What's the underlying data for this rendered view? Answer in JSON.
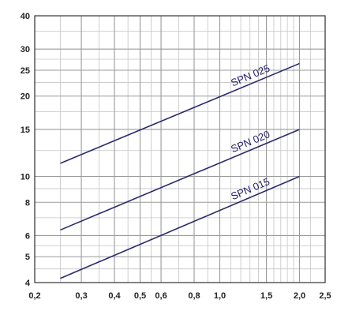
{
  "chart_data": {
    "type": "line",
    "title": "",
    "xlabel": "",
    "ylabel": "",
    "x_scale": "log",
    "y_scale": "log",
    "xlim": [
      0.2,
      2.5
    ],
    "ylim": [
      4,
      40
    ],
    "grid": true,
    "x_ticks": [
      {
        "value": 0.2,
        "label": "0,2"
      },
      {
        "value": 0.3,
        "label": "0,3"
      },
      {
        "value": 0.4,
        "label": "0,4"
      },
      {
        "value": 0.5,
        "label": "0,5"
      },
      {
        "value": 0.6,
        "label": "0,6"
      },
      {
        "value": 0.8,
        "label": "0,8"
      },
      {
        "value": 1.0,
        "label": "1,0"
      },
      {
        "value": 1.5,
        "label": "1,5"
      },
      {
        "value": 2.0,
        "label": "2,0"
      },
      {
        "value": 2.5,
        "label": "2,5"
      }
    ],
    "y_ticks": [
      {
        "value": 4,
        "label": "4"
      },
      {
        "value": 5,
        "label": "5"
      },
      {
        "value": 6,
        "label": "6"
      },
      {
        "value": 8,
        "label": "8"
      },
      {
        "value": 10,
        "label": "10"
      },
      {
        "value": 15,
        "label": "15"
      },
      {
        "value": 20,
        "label": "20"
      },
      {
        "value": 25,
        "label": "25"
      },
      {
        "value": 30,
        "label": "30"
      },
      {
        "value": 40,
        "label": "40"
      }
    ],
    "minor_x_grid": [
      0.25,
      0.35,
      0.45,
      0.55,
      0.7,
      0.9,
      1.1,
      1.2,
      1.3,
      1.4,
      1.6,
      1.7,
      1.8,
      1.9,
      2.2
    ],
    "minor_y_grid": [
      4.5,
      5.5,
      7,
      9,
      12.5,
      17.5,
      22.5,
      27.5,
      35
    ],
    "series": [
      {
        "name": "SPN 025",
        "x": [
          0.25,
          2.0
        ],
        "y": [
          11.2,
          26.5
        ]
      },
      {
        "name": "SPN 020",
        "x": [
          0.25,
          2.0
        ],
        "y": [
          6.3,
          15.0
        ]
      },
      {
        "name": "SPN 015",
        "x": [
          0.25,
          2.0
        ],
        "y": [
          4.15,
          10.0
        ]
      }
    ],
    "colors": {
      "series": "#2b2b6b",
      "grid": "#9a9a9a",
      "axis": "#333333"
    }
  }
}
